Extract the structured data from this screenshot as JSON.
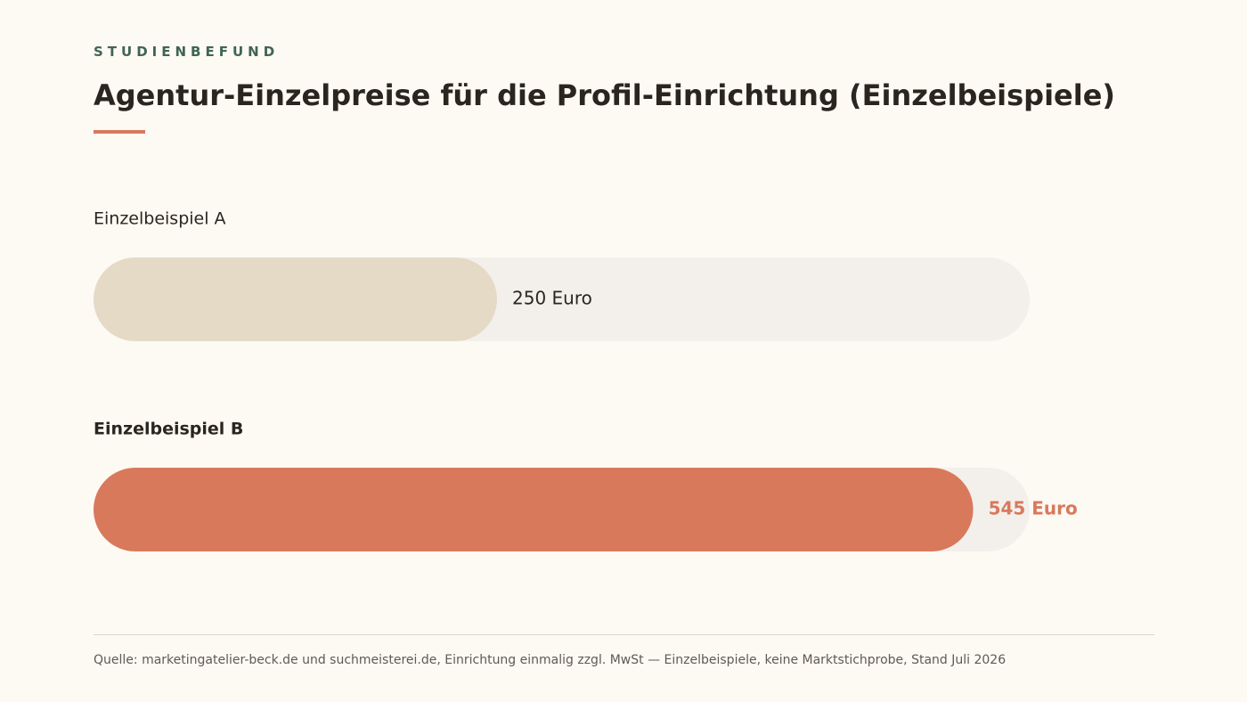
{
  "header": {
    "eyebrow": "STUDIENBEFUND",
    "title": "Agentur-Einzelpreise für die Profil-Einrichtung (Einzelbeispiele)"
  },
  "chart_data": {
    "type": "bar",
    "orientation": "horizontal",
    "title": "Agentur-Einzelpreise für die Profil-Einrichtung (Einzelbeispiele)",
    "unit": "Euro",
    "categories": [
      "Einzelbeispiel A",
      "Einzelbeispiel B"
    ],
    "values": [
      250,
      545
    ],
    "value_labels": [
      "250 Euro",
      "545 Euro"
    ],
    "highlighted": "Einzelbeispiel B",
    "xlim": [
      0,
      580
    ],
    "grid": false,
    "legend": "none",
    "colors": {
      "track": "#f3f0eb",
      "bar": "#e4dac6",
      "bar_highlight": "#d9795c",
      "label": "#2a261f",
      "label_highlight": "#d9795c"
    }
  },
  "footer": {
    "source": "Quelle: marketingatelier-beck.de und suchmeisterei.de, Einrichtung einmalig zzgl. MwSt — Einzelbeispiele, keine Marktstichprobe, Stand Juli 2026"
  }
}
